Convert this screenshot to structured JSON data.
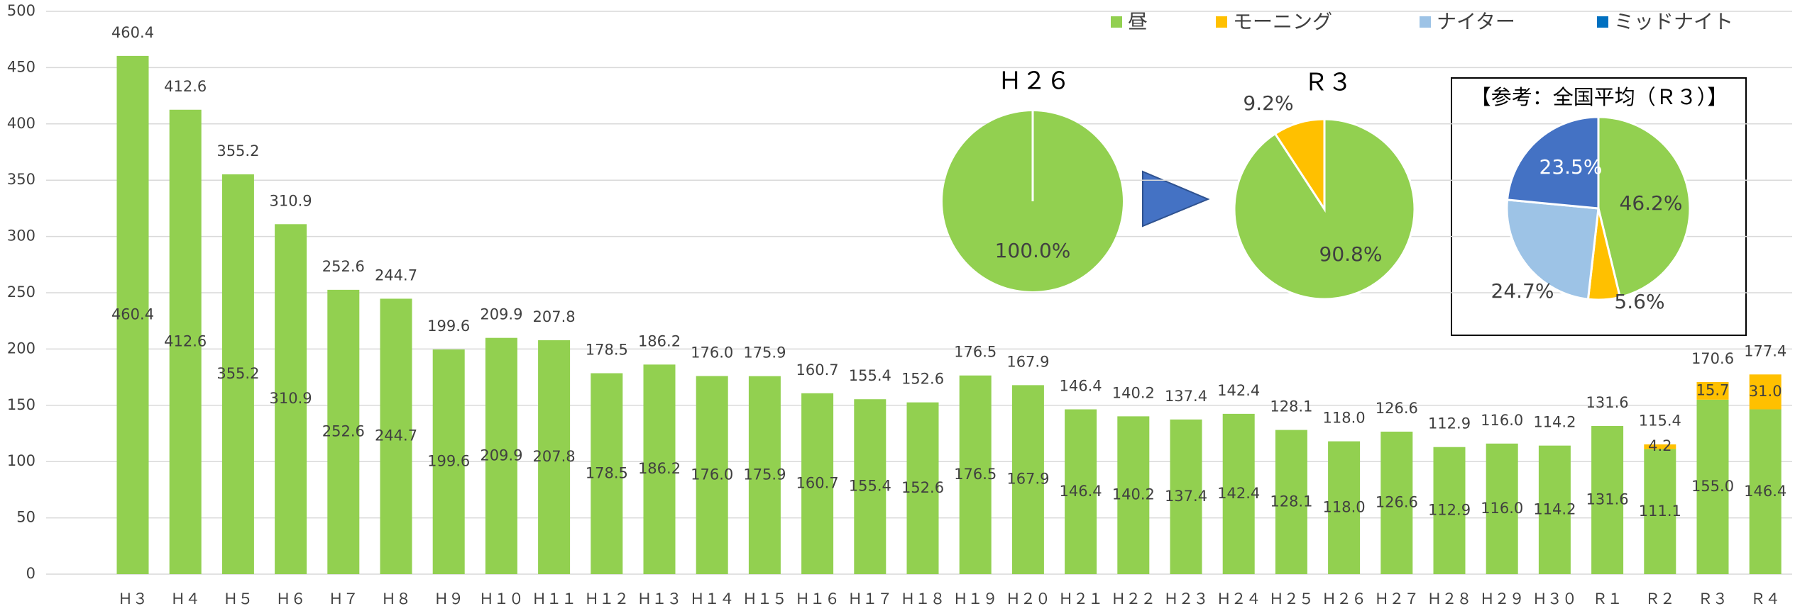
{
  "chart_data": [
    {
      "type": "bar",
      "stacked": true,
      "categories": [
        "Ｈ３",
        "Ｈ４",
        "Ｈ５",
        "Ｈ６",
        "Ｈ７",
        "Ｈ８",
        "Ｈ９",
        "Ｈ１０",
        "Ｈ１１",
        "Ｈ１２",
        "Ｈ１３",
        "Ｈ１４",
        "Ｈ１５",
        "Ｈ１６",
        "Ｈ１７",
        "Ｈ１８",
        "Ｈ１９",
        "Ｈ２０",
        "Ｈ２１",
        "Ｈ２２",
        "Ｈ２３",
        "Ｈ２４",
        "Ｈ２５",
        "Ｈ２６",
        "Ｈ２７",
        "Ｈ２８",
        "Ｈ２９",
        "Ｈ３０",
        "Ｒ１",
        "Ｒ２",
        "Ｒ３",
        "Ｒ４"
      ],
      "series": [
        {
          "name": "昼",
          "color": "#92d050",
          "values": [
            460.4,
            412.6,
            355.2,
            310.9,
            252.6,
            244.7,
            199.6,
            209.9,
            207.8,
            178.5,
            186.2,
            176.0,
            175.9,
            160.7,
            155.4,
            152.6,
            176.5,
            167.9,
            146.4,
            140.2,
            137.4,
            142.4,
            128.1,
            118.0,
            126.6,
            112.9,
            116.0,
            114.2,
            131.6,
            111.1,
            155.0,
            146.4
          ],
          "value_labels": [
            "460.4",
            "412.6",
            "355.2",
            "310.9",
            "252.6",
            "244.7",
            "199.6",
            "209.9",
            "207.8",
            "178.5",
            "186.2",
            "176.0",
            "175.9",
            "160.7",
            "155.4",
            "152.6",
            "176.5",
            "167.9",
            "146.4",
            "140.2",
            "137.4",
            "142.4",
            "128.1",
            "118.0",
            "126.6",
            "112.9",
            "116.0",
            "114.2",
            "131.6",
            "111.1",
            "155.0",
            "146.4"
          ]
        },
        {
          "name": "モーニング",
          "color": "#ffc000",
          "values": [
            null,
            null,
            null,
            null,
            null,
            null,
            null,
            null,
            null,
            null,
            null,
            null,
            null,
            null,
            null,
            null,
            null,
            null,
            null,
            null,
            null,
            null,
            null,
            null,
            null,
            null,
            null,
            null,
            null,
            4.2,
            15.7,
            31.0
          ],
          "value_labels": [
            null,
            null,
            null,
            null,
            null,
            null,
            null,
            null,
            null,
            null,
            null,
            null,
            null,
            null,
            null,
            null,
            null,
            null,
            null,
            null,
            null,
            null,
            null,
            null,
            null,
            null,
            null,
            null,
            null,
            "4.2",
            "15.7",
            "31.0"
          ]
        },
        {
          "name": "ナイター",
          "color": "#9dc3e6",
          "values": [
            null,
            null,
            null,
            null,
            null,
            null,
            null,
            null,
            null,
            null,
            null,
            null,
            null,
            null,
            null,
            null,
            null,
            null,
            null,
            null,
            null,
            null,
            null,
            null,
            null,
            null,
            null,
            null,
            null,
            null,
            null,
            null
          ]
        },
        {
          "name": "ミッドナイト",
          "color": "#0070c0",
          "values": [
            null,
            null,
            null,
            null,
            null,
            null,
            null,
            null,
            null,
            null,
            null,
            null,
            null,
            null,
            null,
            null,
            null,
            null,
            null,
            null,
            null,
            null,
            null,
            null,
            null,
            null,
            null,
            null,
            null,
            null,
            null,
            null
          ]
        }
      ],
      "totals": [
        460.4,
        412.6,
        355.2,
        310.9,
        252.6,
        244.7,
        199.6,
        209.9,
        207.8,
        178.5,
        186.2,
        176.0,
        175.9,
        160.7,
        155.4,
        152.6,
        176.5,
        167.9,
        146.4,
        140.2,
        137.4,
        142.4,
        128.1,
        118.0,
        126.6,
        112.9,
        116.0,
        114.2,
        131.6,
        115.4,
        170.6,
        177.4
      ],
      "total_labels": [
        "460.4",
        "412.6",
        "355.2",
        "310.9",
        "252.6",
        "244.7",
        "199.6",
        "209.9",
        "207.8",
        "178.5",
        "186.2",
        "176.0",
        "175.9",
        "160.7",
        "155.4",
        "152.6",
        "176.5",
        "167.9",
        "146.4",
        "140.2",
        "137.4",
        "142.4",
        "128.1",
        "118.0",
        "126.6",
        "112.9",
        "116.0",
        "114.2",
        "131.6",
        "115.4",
        "170.6",
        "177.4"
      ],
      "ylim": [
        0,
        500
      ],
      "yticks": [
        0,
        50,
        100,
        150,
        200,
        250,
        300,
        350,
        400,
        450,
        500
      ],
      "grid": true,
      "legend": "top-right"
    },
    {
      "type": "pie",
      "title": "Ｈ２６",
      "values": [
        100.0
      ],
      "value_labels": [
        "100.0%"
      ],
      "colors": [
        "#92d050"
      ]
    },
    {
      "type": "pie",
      "title": "Ｒ３",
      "values": [
        90.8,
        9.2
      ],
      "value_labels": [
        "90.8%",
        "9.2%"
      ],
      "colors": [
        "#92d050",
        "#ffc000"
      ]
    },
    {
      "type": "pie",
      "title": "【参考：全国平均（Ｒ３）】",
      "values": [
        46.2,
        5.6,
        24.7,
        23.5
      ],
      "value_labels": [
        "46.2%",
        "5.6%",
        "24.7%",
        "23.5%"
      ],
      "colors": [
        "#92d050",
        "#ffc000",
        "#9dc3e6",
        "#4472c4"
      ]
    }
  ]
}
